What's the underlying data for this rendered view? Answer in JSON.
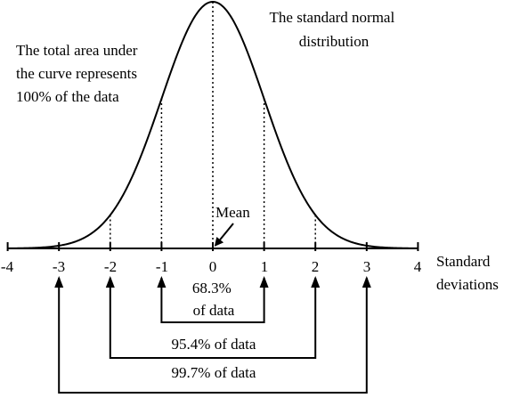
{
  "title_lines": [
    "The standard normal",
    "distribution"
  ],
  "area_note_lines": [
    "The total area under",
    "the curve represents",
    "100% of the data"
  ],
  "mean_label": "Mean",
  "axis_label_lines": [
    "Standard",
    "deviations"
  ],
  "ticks": [
    "-4",
    "-3",
    "-2",
    "-1",
    "0",
    "1",
    "2",
    "3",
    "4"
  ],
  "x_range": [
    -4,
    4
  ],
  "dotted_guides_at": [
    -2,
    -1,
    0,
    1,
    2
  ],
  "ranges": [
    {
      "from": -1,
      "to": 1,
      "label_lines": [
        "68.3%",
        "of data"
      ]
    },
    {
      "from": -2,
      "to": 2,
      "label_lines": [
        "95.4% of data"
      ]
    },
    {
      "from": -3,
      "to": 3,
      "label_lines": [
        "99.7% of data"
      ]
    }
  ],
  "colors": {
    "ink": "#000000",
    "background": "#ffffff"
  }
}
